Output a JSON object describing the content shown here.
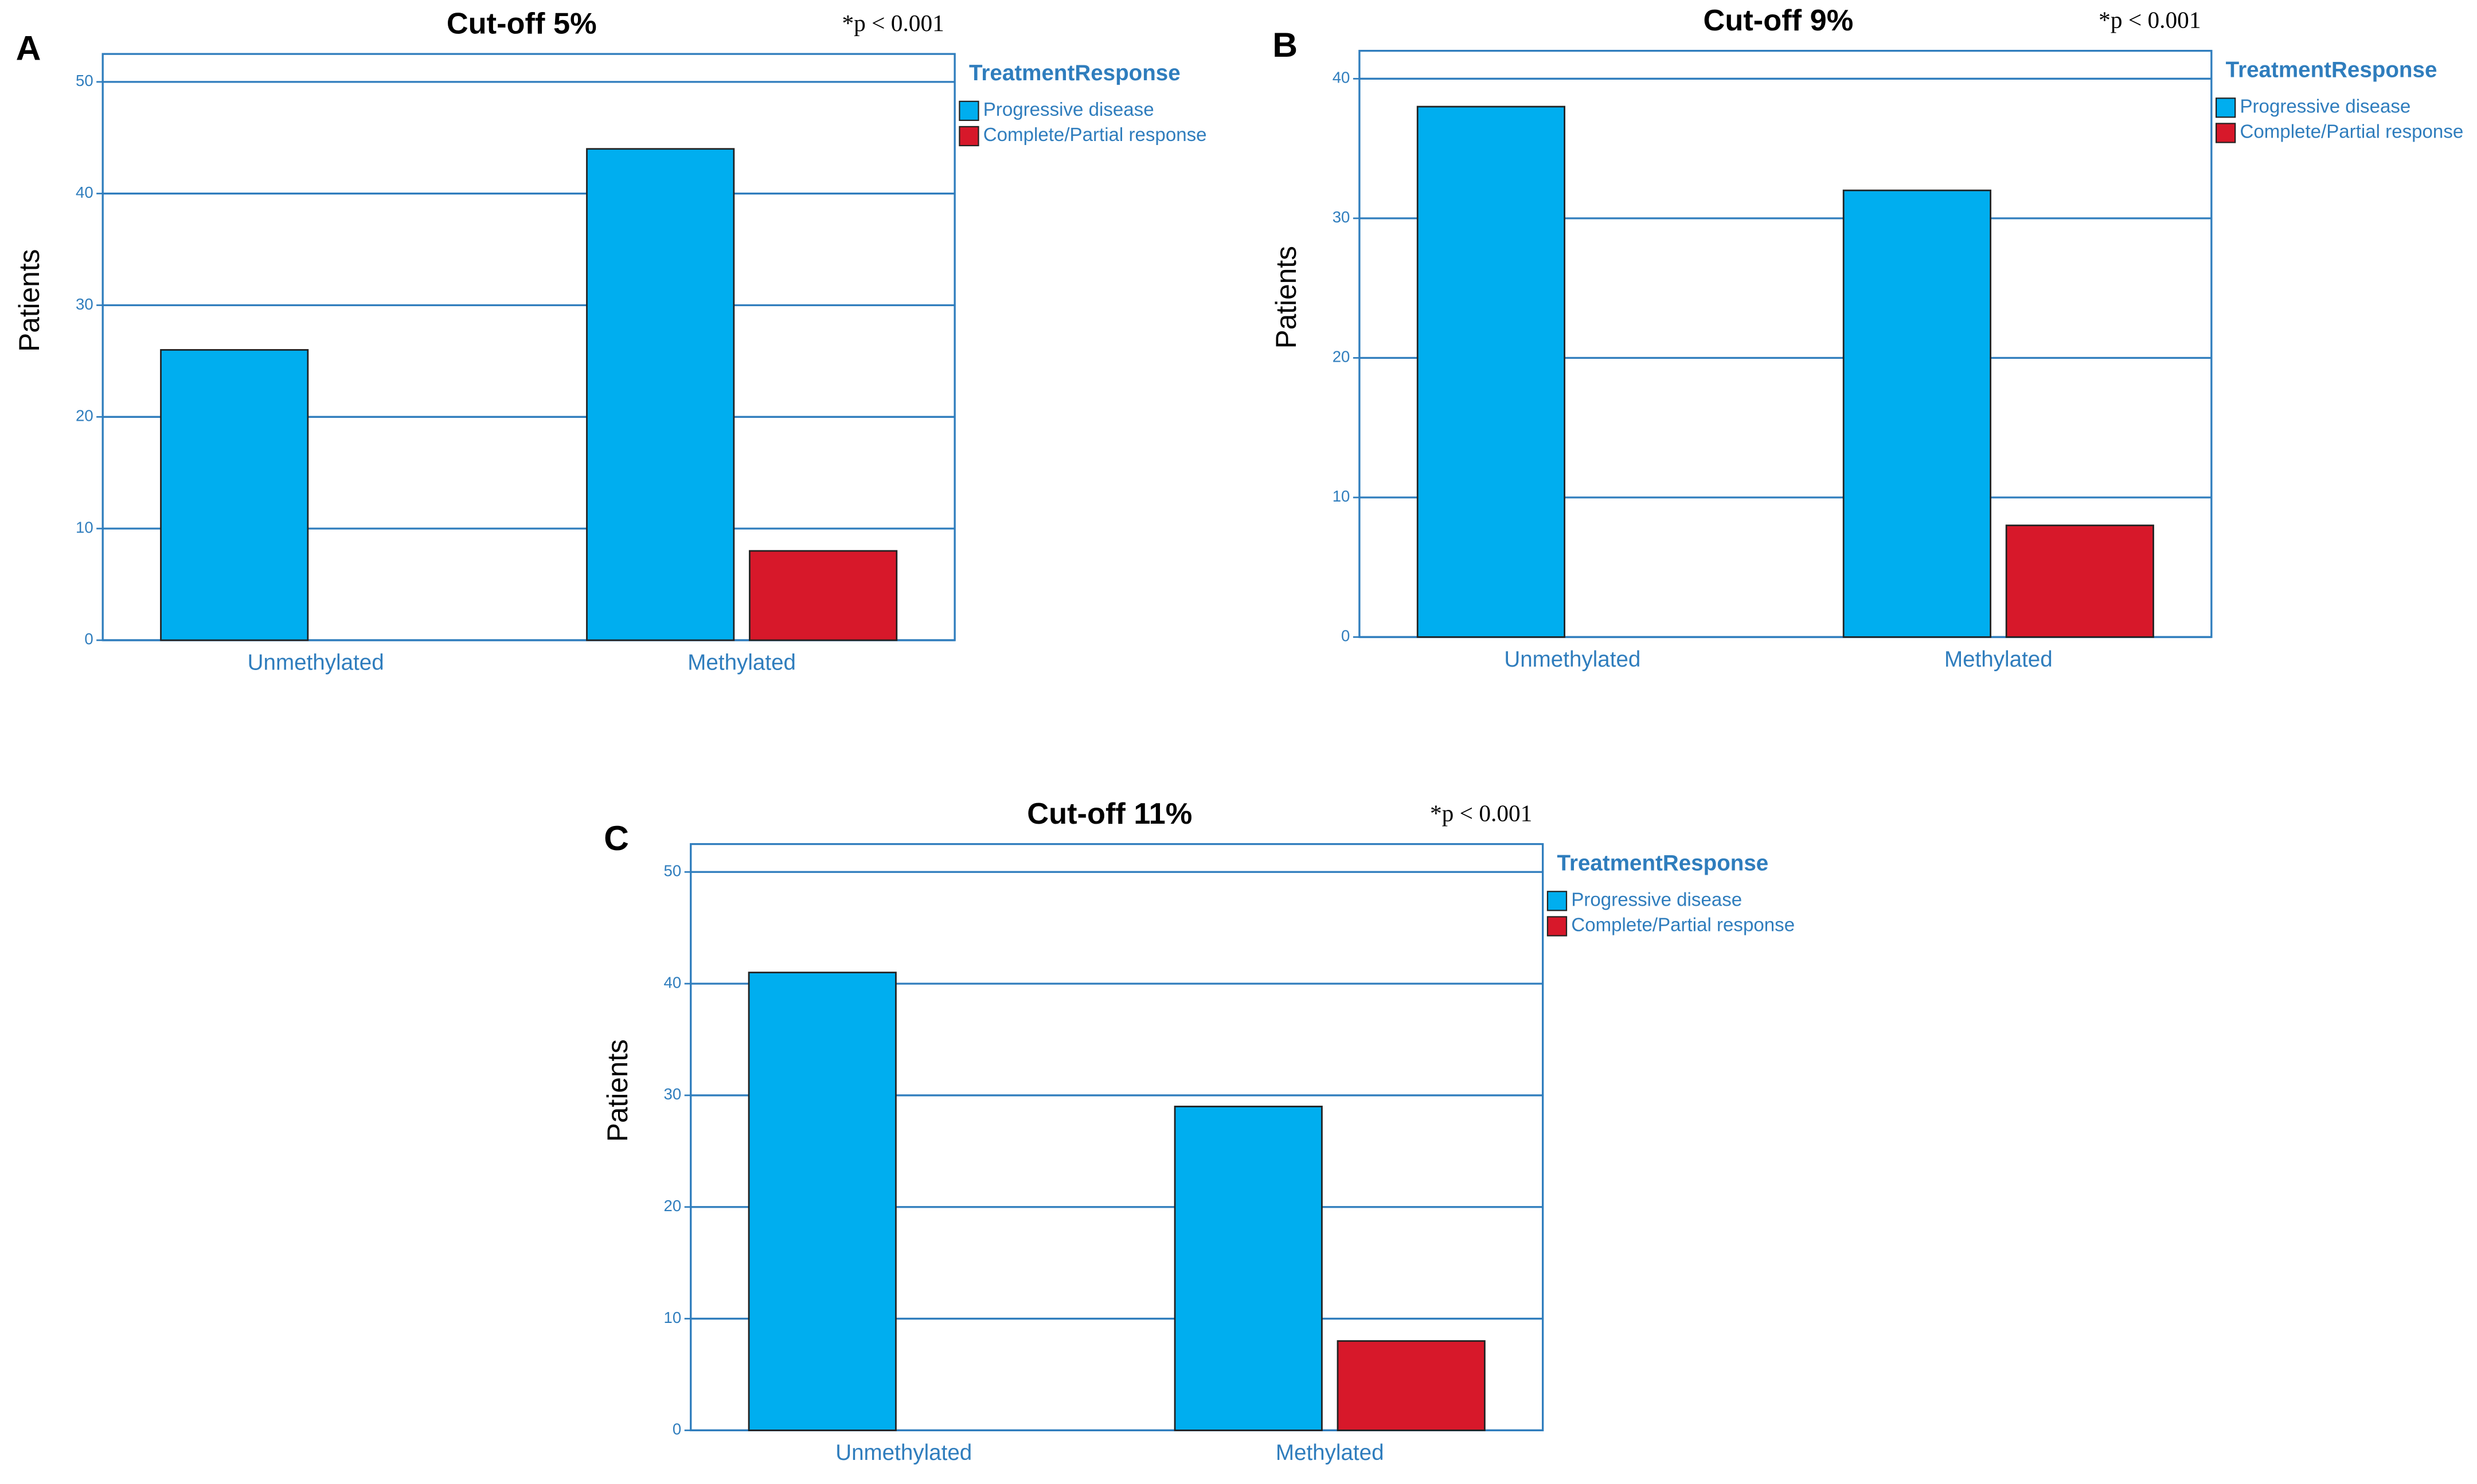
{
  "chart_data": [
    {
      "type": "bar",
      "panel": "A",
      "title": "Cut-off 5%",
      "annotation": "*p < 0.001",
      "y_label": "Patients",
      "legend_title": "TreatmentResponse",
      "categories": [
        "Unmethylated",
        "Methylated"
      ],
      "series": [
        {
          "name": "Progressive disease",
          "color": "#00aeef",
          "values": [
            26,
            44
          ]
        },
        {
          "name": "Complete/Partial response",
          "color": "#d7182a",
          "values": [
            0,
            8
          ]
        }
      ],
      "ylim": [
        0,
        52.5
      ],
      "yticks": [
        0,
        10,
        20,
        30,
        40,
        50
      ],
      "grid": true
    },
    {
      "type": "bar",
      "panel": "B",
      "title": "Cut-off 9%",
      "annotation": "*p < 0.001",
      "y_label": "Patients",
      "legend_title": "TreatmentResponse",
      "categories": [
        "Unmethylated",
        "Methylated"
      ],
      "series": [
        {
          "name": "Progressive disease",
          "color": "#00aeef",
          "values": [
            38,
            32
          ]
        },
        {
          "name": "Complete/Partial response",
          "color": "#d7182a",
          "values": [
            0,
            8
          ]
        }
      ],
      "ylim": [
        0,
        42
      ],
      "yticks": [
        0,
        10,
        20,
        30,
        40
      ],
      "grid": true
    },
    {
      "type": "bar",
      "panel": "C",
      "title": "Cut-off 11%",
      "annotation": "*p < 0.001",
      "y_label": "Patients",
      "legend_title": "TreatmentResponse",
      "categories": [
        "Unmethylated",
        "Methylated"
      ],
      "series": [
        {
          "name": "Progressive disease",
          "color": "#00aeef",
          "values": [
            41,
            29
          ]
        },
        {
          "name": "Complete/Partial response",
          "color": "#d7182a",
          "values": [
            0,
            8
          ]
        }
      ],
      "ylim": [
        0,
        52.5
      ],
      "yticks": [
        0,
        10,
        20,
        30,
        40,
        50
      ],
      "grid": true
    }
  ]
}
